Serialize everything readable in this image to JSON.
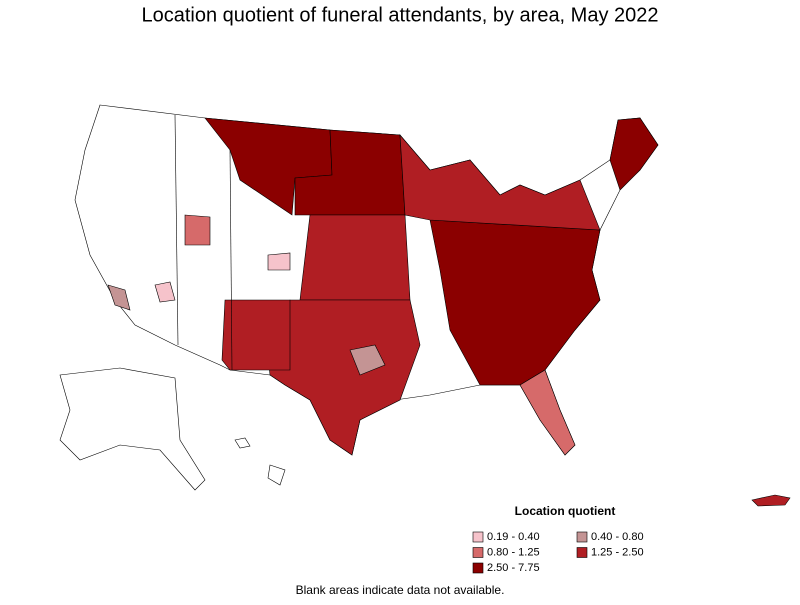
{
  "title": "Location quotient of funeral attendants, by area, May 2022",
  "legend": {
    "title": "Location quotient",
    "items": [
      {
        "label": "0.19 - 0.40",
        "color": "#f6c3cb"
      },
      {
        "label": "0.40 - 0.80",
        "color": "#c49494"
      },
      {
        "label": "0.80 - 1.25",
        "color": "#d66a6a"
      },
      {
        "label": "1.25 - 2.50",
        "color": "#b01e23"
      },
      {
        "label": "2.50 - 7.75",
        "color": "#8b0000"
      }
    ]
  },
  "note": "Blank areas indicate data not available."
}
